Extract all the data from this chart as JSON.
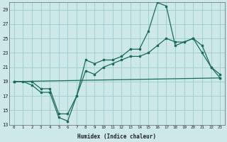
{
  "xlabel": "Humidex (Indice chaleur)",
  "bg_color": "#cce8e8",
  "grid_color": "#99cccc",
  "line_color": "#1a6b5a",
  "xlim": [
    -0.5,
    23.5
  ],
  "ylim": [
    13,
    30
  ],
  "yticks": [
    13,
    15,
    17,
    19,
    21,
    23,
    25,
    27,
    29
  ],
  "xticks": [
    0,
    1,
    2,
    3,
    4,
    5,
    6,
    7,
    8,
    9,
    10,
    11,
    12,
    13,
    14,
    15,
    16,
    17,
    18,
    19,
    20,
    21,
    22,
    23
  ],
  "line1_x": [
    0,
    1,
    2,
    3,
    4,
    5,
    6,
    7,
    8,
    9,
    10,
    11,
    12,
    13,
    14,
    15,
    16,
    17,
    18,
    19,
    20,
    21,
    22,
    23
  ],
  "line1_y": [
    19.0,
    19.0,
    18.5,
    17.5,
    17.5,
    14.0,
    13.5,
    17.0,
    22.0,
    21.5,
    22.0,
    22.0,
    22.5,
    23.5,
    23.5,
    26.0,
    30.0,
    29.5,
    24.0,
    24.5,
    25.0,
    23.0,
    21.0,
    20.0
  ],
  "line2_x": [
    0,
    2,
    3,
    4,
    5,
    6,
    7,
    8,
    9,
    10,
    11,
    12,
    13,
    14,
    15,
    16,
    17,
    18,
    19,
    20,
    21,
    22,
    23
  ],
  "line2_y": [
    19.0,
    19.0,
    18.0,
    18.0,
    14.5,
    14.5,
    17.0,
    20.5,
    20.0,
    21.0,
    21.5,
    22.0,
    22.5,
    22.5,
    23.0,
    24.0,
    25.0,
    24.5,
    24.5,
    25.0,
    24.0,
    21.0,
    19.5
  ],
  "line3_x": [
    0,
    23
  ],
  "line3_y": [
    19.0,
    19.5
  ]
}
